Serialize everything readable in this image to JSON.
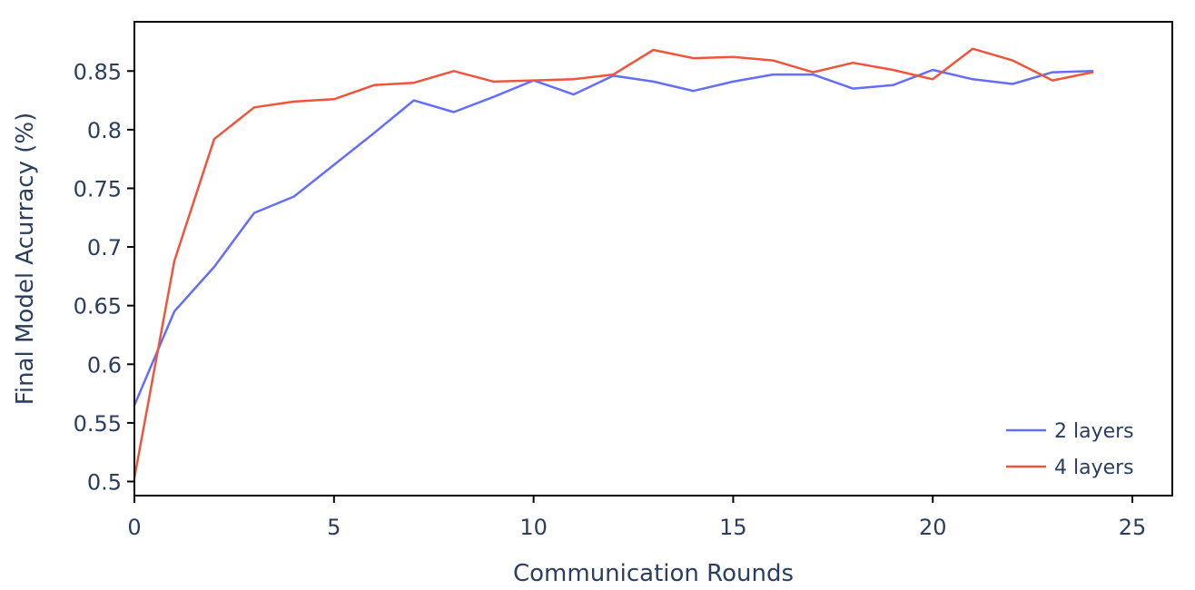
{
  "chart_data": {
    "type": "line",
    "title": "",
    "xlabel": "Communication Rounds",
    "ylabel": "Final Model Acurracy (%)",
    "xlim": [
      0,
      26
    ],
    "ylim": [
      0.488,
      0.892
    ],
    "xticks": [
      0,
      5,
      10,
      15,
      20,
      25
    ],
    "xtick_labels": [
      "0",
      "5",
      "10",
      "15",
      "20",
      "25"
    ],
    "yticks": [
      0.5,
      0.55,
      0.6,
      0.65,
      0.7,
      0.75,
      0.8,
      0.85
    ],
    "ytick_labels": [
      "0.5",
      "0.55",
      "0.6",
      "0.65",
      "0.7",
      "0.75",
      "0.8",
      "0.85"
    ],
    "grid": false,
    "legend_position": "bottom-right",
    "x": [
      0,
      1,
      2,
      3,
      4,
      5,
      6,
      7,
      8,
      9,
      10,
      11,
      12,
      13,
      14,
      15,
      16,
      17,
      18,
      19,
      20,
      21,
      22,
      23,
      24
    ],
    "series": [
      {
        "name": "2 layers",
        "color": "#636efa",
        "values": [
          0.565,
          0.645,
          0.683,
          0.729,
          0.743,
          0.77,
          0.797,
          0.825,
          0.815,
          0.828,
          0.842,
          0.83,
          0.846,
          0.841,
          0.833,
          0.841,
          0.847,
          0.847,
          0.835,
          0.838,
          0.851,
          0.843,
          0.839,
          0.849,
          0.85
        ]
      },
      {
        "name": "4 layers",
        "color": "#ef553b",
        "values": [
          0.503,
          0.688,
          0.792,
          0.819,
          0.824,
          0.826,
          0.838,
          0.84,
          0.85,
          0.841,
          0.842,
          0.843,
          0.847,
          0.868,
          0.861,
          0.862,
          0.859,
          0.849,
          0.857,
          0.851,
          0.843,
          0.869,
          0.859,
          0.842,
          0.849
        ]
      }
    ]
  }
}
